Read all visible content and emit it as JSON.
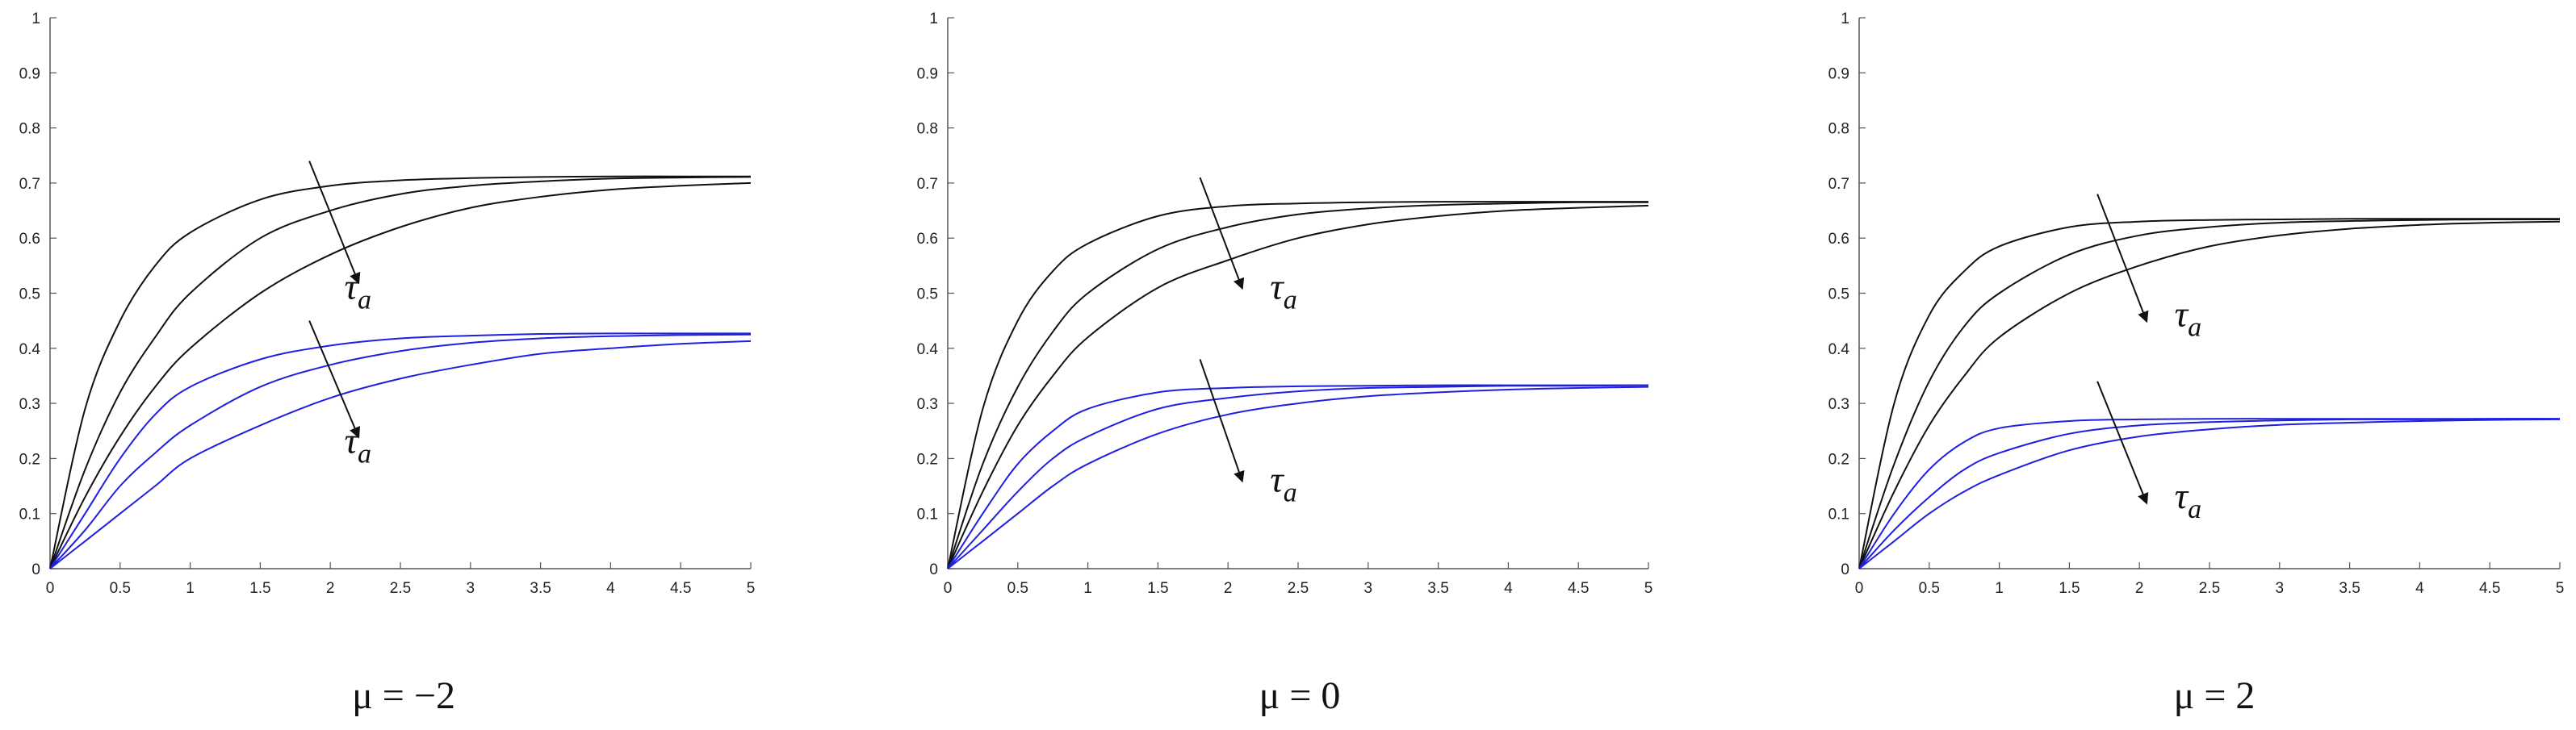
{
  "chart_data": [
    {
      "type": "line",
      "caption": "μ = −2",
      "xlim": [
        0,
        5
      ],
      "ylim": [
        0,
        1
      ],
      "xticks": [
        "0",
        "0.5",
        "1",
        "1.5",
        "2",
        "2.5",
        "3",
        "3.5",
        "4",
        "4.5",
        "5"
      ],
      "yticks": [
        "0",
        "0.1",
        "0.2",
        "0.3",
        "0.4",
        "0.5",
        "0.6",
        "0.7",
        "0.8",
        "0.9",
        "1"
      ],
      "grid": false,
      "series_colors": {
        "upper": "#111111",
        "lower": "#1f1fe0"
      },
      "series": [
        {
          "group": "upper",
          "x": [
            0,
            0.25,
            0.5,
            0.75,
            1,
            1.5,
            2,
            2.5,
            3,
            3.5,
            4,
            4.5,
            5
          ],
          "values": [
            0,
            0.29,
            0.45,
            0.55,
            0.61,
            0.67,
            0.695,
            0.705,
            0.709,
            0.711,
            0.712,
            0.712,
            0.712
          ]
        },
        {
          "group": "upper",
          "x": [
            0,
            0.25,
            0.5,
            0.75,
            1,
            1.5,
            2,
            2.5,
            3,
            3.5,
            4,
            4.5,
            5
          ],
          "values": [
            0,
            0.18,
            0.32,
            0.42,
            0.5,
            0.6,
            0.65,
            0.68,
            0.695,
            0.703,
            0.708,
            0.71,
            0.711
          ]
        },
        {
          "group": "upper",
          "x": [
            0,
            0.25,
            0.5,
            0.75,
            1,
            1.5,
            2,
            2.5,
            3,
            3.5,
            4,
            4.5,
            5
          ],
          "values": [
            0,
            0.13,
            0.24,
            0.33,
            0.4,
            0.5,
            0.57,
            0.62,
            0.655,
            0.675,
            0.688,
            0.695,
            0.7
          ]
        },
        {
          "group": "lower",
          "x": [
            0,
            0.25,
            0.5,
            0.75,
            1,
            1.5,
            2,
            2.5,
            3,
            3.5,
            4,
            4.5,
            5
          ],
          "values": [
            0,
            0.1,
            0.2,
            0.28,
            0.33,
            0.38,
            0.405,
            0.418,
            0.423,
            0.426,
            0.427,
            0.427,
            0.427
          ]
        },
        {
          "group": "lower",
          "x": [
            0,
            0.25,
            0.5,
            0.75,
            1,
            1.5,
            2,
            2.5,
            3,
            3.5,
            4,
            4.5,
            5
          ],
          "values": [
            0,
            0.07,
            0.15,
            0.21,
            0.26,
            0.33,
            0.37,
            0.395,
            0.41,
            0.418,
            0.422,
            0.424,
            0.425
          ]
        },
        {
          "group": "lower",
          "x": [
            0,
            0.25,
            0.5,
            0.75,
            1,
            1.5,
            2,
            2.5,
            3,
            3.5,
            4,
            4.5,
            5
          ],
          "values": [
            0,
            0.05,
            0.1,
            0.15,
            0.2,
            0.26,
            0.31,
            0.345,
            0.37,
            0.39,
            0.4,
            0.408,
            0.413
          ]
        }
      ],
      "annotations": [
        {
          "label": "τ",
          "subscript": "a",
          "arrow_from": [
            1.85,
            0.74
          ],
          "arrow_to": [
            2.2,
            0.52
          ],
          "text_at": [
            2.1,
            0.49
          ]
        },
        {
          "label": "τ",
          "subscript": "a",
          "arrow_from": [
            1.85,
            0.45
          ],
          "arrow_to": [
            2.2,
            0.24
          ],
          "text_at": [
            2.1,
            0.21
          ]
        }
      ]
    },
    {
      "type": "line",
      "caption": "μ = 0",
      "xlim": [
        0,
        5
      ],
      "ylim": [
        0,
        1
      ],
      "xticks": [
        "0",
        "0.5",
        "1",
        "1.5",
        "2",
        "2.5",
        "3",
        "3.5",
        "4",
        "4.5",
        "5"
      ],
      "yticks": [
        "0",
        "0.1",
        "0.2",
        "0.3",
        "0.4",
        "0.5",
        "0.6",
        "0.7",
        "0.8",
        "0.9",
        "1"
      ],
      "grid": false,
      "series_colors": {
        "upper": "#111111",
        "lower": "#1f1fe0"
      },
      "series": [
        {
          "group": "upper",
          "x": [
            0,
            0.25,
            0.5,
            0.75,
            1,
            1.5,
            2,
            2.5,
            3,
            3.5,
            4,
            4.5,
            5
          ],
          "values": [
            0,
            0.29,
            0.45,
            0.54,
            0.59,
            0.64,
            0.658,
            0.663,
            0.665,
            0.666,
            0.666,
            0.666,
            0.666
          ]
        },
        {
          "group": "upper",
          "x": [
            0,
            0.25,
            0.5,
            0.75,
            1,
            1.5,
            2,
            2.5,
            3,
            3.5,
            4,
            4.5,
            5
          ],
          "values": [
            0,
            0.19,
            0.33,
            0.43,
            0.5,
            0.58,
            0.62,
            0.643,
            0.654,
            0.66,
            0.663,
            0.665,
            0.665
          ]
        },
        {
          "group": "upper",
          "x": [
            0,
            0.25,
            0.5,
            0.75,
            1,
            1.5,
            2,
            2.5,
            3,
            3.5,
            4,
            4.5,
            5
          ],
          "values": [
            0,
            0.14,
            0.26,
            0.35,
            0.42,
            0.51,
            0.56,
            0.6,
            0.625,
            0.64,
            0.65,
            0.655,
            0.659
          ]
        },
        {
          "group": "lower",
          "x": [
            0,
            0.25,
            0.5,
            0.75,
            1,
            1.5,
            2,
            2.5,
            3,
            3.5,
            4,
            4.5,
            5
          ],
          "values": [
            0,
            0.1,
            0.19,
            0.25,
            0.29,
            0.32,
            0.328,
            0.331,
            0.332,
            0.333,
            0.333,
            0.333,
            0.333
          ]
        },
        {
          "group": "lower",
          "x": [
            0,
            0.25,
            0.5,
            0.75,
            1,
            1.5,
            2,
            2.5,
            3,
            3.5,
            4,
            4.5,
            5
          ],
          "values": [
            0,
            0.07,
            0.14,
            0.2,
            0.24,
            0.29,
            0.31,
            0.322,
            0.328,
            0.33,
            0.332,
            0.332,
            0.333
          ]
        },
        {
          "group": "lower",
          "x": [
            0,
            0.25,
            0.5,
            0.75,
            1,
            1.5,
            2,
            2.5,
            3,
            3.5,
            4,
            4.5,
            5
          ],
          "values": [
            0,
            0.05,
            0.1,
            0.15,
            0.19,
            0.245,
            0.28,
            0.3,
            0.313,
            0.32,
            0.325,
            0.328,
            0.33
          ]
        }
      ],
      "annotations": [
        {
          "label": "τ",
          "subscript": "a",
          "arrow_from": [
            1.8,
            0.71
          ],
          "arrow_to": [
            2.1,
            0.51
          ],
          "text_at": [
            2.3,
            0.49
          ]
        },
        {
          "label": "τ",
          "subscript": "a",
          "arrow_from": [
            1.8,
            0.38
          ],
          "arrow_to": [
            2.1,
            0.16
          ],
          "text_at": [
            2.3,
            0.14
          ]
        }
      ]
    },
    {
      "type": "line",
      "caption": "μ = 2",
      "xlim": [
        0,
        5
      ],
      "ylim": [
        0,
        1
      ],
      "xticks": [
        "0",
        "0.5",
        "1",
        "1.5",
        "2",
        "2.5",
        "3",
        "3.5",
        "4",
        "4.5",
        "5"
      ],
      "yticks": [
        "0",
        "0.1",
        "0.2",
        "0.3",
        "0.4",
        "0.5",
        "0.6",
        "0.7",
        "0.8",
        "0.9",
        "1"
      ],
      "grid": false,
      "series_colors": {
        "upper": "#111111",
        "lower": "#1f1fe0"
      },
      "series": [
        {
          "group": "upper",
          "x": [
            0,
            0.25,
            0.5,
            0.75,
            1,
            1.5,
            2,
            2.5,
            3,
            3.5,
            4,
            4.5,
            5
          ],
          "values": [
            0,
            0.3,
            0.46,
            0.54,
            0.585,
            0.62,
            0.63,
            0.633,
            0.634,
            0.635,
            0.635,
            0.635,
            0.635
          ]
        },
        {
          "group": "upper",
          "x": [
            0,
            0.25,
            0.5,
            0.75,
            1,
            1.5,
            2,
            2.5,
            3,
            3.5,
            4,
            4.5,
            5
          ],
          "values": [
            0,
            0.19,
            0.34,
            0.44,
            0.5,
            0.57,
            0.605,
            0.62,
            0.628,
            0.631,
            0.633,
            0.634,
            0.634
          ]
        },
        {
          "group": "upper",
          "x": [
            0,
            0.25,
            0.5,
            0.75,
            1,
            1.5,
            2,
            2.5,
            3,
            3.5,
            4,
            4.5,
            5
          ],
          "values": [
            0,
            0.14,
            0.26,
            0.35,
            0.42,
            0.5,
            0.55,
            0.585,
            0.605,
            0.617,
            0.624,
            0.628,
            0.63
          ]
        },
        {
          "group": "lower",
          "x": [
            0,
            0.25,
            0.5,
            0.75,
            1,
            1.5,
            2,
            2.5,
            3,
            3.5,
            4,
            4.5,
            5
          ],
          "values": [
            0,
            0.1,
            0.18,
            0.23,
            0.255,
            0.268,
            0.271,
            0.272,
            0.272,
            0.272,
            0.272,
            0.272,
            0.272
          ]
        },
        {
          "group": "lower",
          "x": [
            0,
            0.25,
            0.5,
            0.75,
            1,
            1.5,
            2,
            2.5,
            3,
            3.5,
            4,
            4.5,
            5
          ],
          "values": [
            0,
            0.07,
            0.13,
            0.18,
            0.21,
            0.245,
            0.26,
            0.266,
            0.269,
            0.271,
            0.271,
            0.272,
            0.272
          ]
        },
        {
          "group": "lower",
          "x": [
            0,
            0.25,
            0.5,
            0.75,
            1,
            1.5,
            2,
            2.5,
            3,
            3.5,
            4,
            4.5,
            5
          ],
          "values": [
            0,
            0.05,
            0.1,
            0.14,
            0.17,
            0.215,
            0.24,
            0.253,
            0.261,
            0.265,
            0.268,
            0.27,
            0.271
          ]
        }
      ],
      "annotations": [
        {
          "label": "τ",
          "subscript": "a",
          "arrow_from": [
            1.7,
            0.68
          ],
          "arrow_to": [
            2.05,
            0.45
          ],
          "text_at": [
            2.25,
            0.44
          ]
        },
        {
          "label": "τ",
          "subscript": "a",
          "arrow_from": [
            1.7,
            0.34
          ],
          "arrow_to": [
            2.05,
            0.12
          ],
          "text_at": [
            2.25,
            0.11
          ]
        }
      ]
    }
  ]
}
